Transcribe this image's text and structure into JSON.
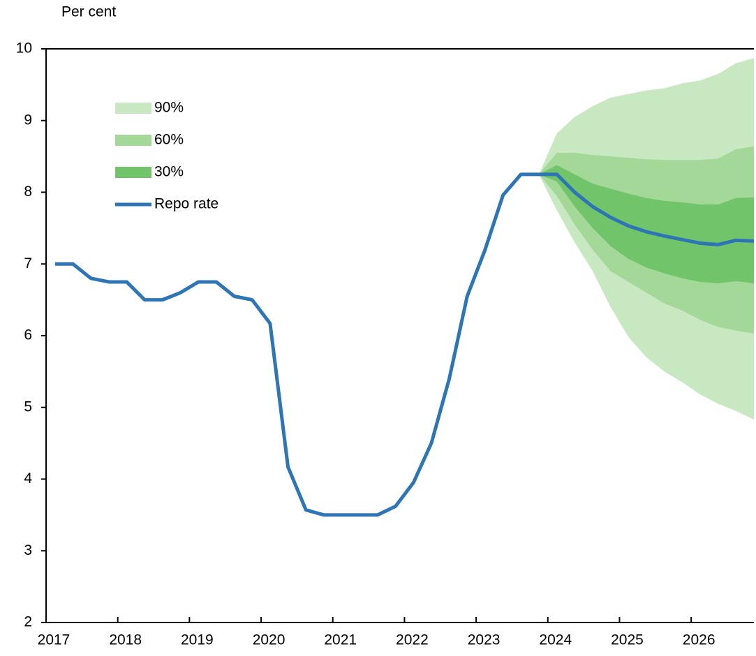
{
  "chart_data": {
    "type": "fan",
    "y_label": "Per cent",
    "x": [
      2017.125,
      2017.375,
      2017.625,
      2017.875,
      2018.125,
      2018.375,
      2018.625,
      2018.875,
      2019.125,
      2019.375,
      2019.625,
      2019.875,
      2020.125,
      2020.375,
      2020.625,
      2020.875,
      2021.125,
      2021.375,
      2021.625,
      2021.875,
      2022.125,
      2022.375,
      2022.625,
      2022.875,
      2023.125,
      2023.375,
      2023.625,
      2023.875,
      2024.125,
      2024.375,
      2024.625,
      2024.875,
      2025.125,
      2025.375,
      2025.625,
      2025.875,
      2026.125,
      2026.375,
      2026.625,
      2026.875
    ],
    "bands": [
      {
        "name": "90%",
        "color": "#c8e8c1",
        "upper": [
          null,
          null,
          null,
          null,
          null,
          null,
          null,
          null,
          null,
          null,
          null,
          null,
          null,
          null,
          null,
          null,
          null,
          null,
          null,
          null,
          null,
          null,
          null,
          null,
          null,
          null,
          null,
          8.25,
          8.82,
          9.05,
          9.2,
          9.32,
          9.37,
          9.42,
          9.45,
          9.52,
          9.56,
          9.65,
          9.8,
          9.87
        ],
        "lower": [
          null,
          null,
          null,
          null,
          null,
          null,
          null,
          null,
          null,
          null,
          null,
          null,
          null,
          null,
          null,
          null,
          null,
          null,
          null,
          null,
          null,
          null,
          null,
          null,
          null,
          null,
          null,
          8.25,
          7.75,
          7.3,
          6.9,
          6.4,
          5.98,
          5.7,
          5.5,
          5.35,
          5.18,
          5.05,
          4.95,
          4.83
        ]
      },
      {
        "name": "60%",
        "color": "#a3d899",
        "upper": [
          null,
          null,
          null,
          null,
          null,
          null,
          null,
          null,
          null,
          null,
          null,
          null,
          null,
          null,
          null,
          null,
          null,
          null,
          null,
          null,
          null,
          null,
          null,
          null,
          null,
          null,
          null,
          8.25,
          8.55,
          8.55,
          8.52,
          8.5,
          8.48,
          8.46,
          8.45,
          8.45,
          8.45,
          8.47,
          8.6,
          8.64
        ],
        "lower": [
          null,
          null,
          null,
          null,
          null,
          null,
          null,
          null,
          null,
          null,
          null,
          null,
          null,
          null,
          null,
          null,
          null,
          null,
          null,
          null,
          null,
          null,
          null,
          null,
          null,
          null,
          null,
          8.25,
          7.95,
          7.55,
          7.2,
          6.9,
          6.75,
          6.6,
          6.45,
          6.35,
          6.22,
          6.12,
          6.07,
          6.03
        ]
      },
      {
        "name": "30%",
        "color": "#72c46b",
        "upper": [
          null,
          null,
          null,
          null,
          null,
          null,
          null,
          null,
          null,
          null,
          null,
          null,
          null,
          null,
          null,
          null,
          null,
          null,
          null,
          null,
          null,
          null,
          null,
          null,
          null,
          null,
          null,
          8.25,
          8.38,
          8.25,
          8.12,
          8.05,
          7.98,
          7.92,
          7.88,
          7.86,
          7.83,
          7.83,
          7.92,
          7.93
        ],
        "lower": [
          null,
          null,
          null,
          null,
          null,
          null,
          null,
          null,
          null,
          null,
          null,
          null,
          null,
          null,
          null,
          null,
          null,
          null,
          null,
          null,
          null,
          null,
          null,
          null,
          null,
          null,
          null,
          8.25,
          8.15,
          7.8,
          7.5,
          7.25,
          7.07,
          6.95,
          6.87,
          6.8,
          6.75,
          6.73,
          6.76,
          6.73
        ]
      }
    ],
    "series": [
      {
        "name": "Repo rate",
        "color": "#2e75b6",
        "values": [
          7.0,
          7.0,
          6.8,
          6.75,
          6.75,
          6.5,
          6.5,
          6.6,
          6.75,
          6.75,
          6.55,
          6.5,
          6.17,
          4.17,
          3.57,
          3.5,
          3.5,
          3.5,
          3.5,
          3.62,
          3.95,
          4.5,
          5.4,
          6.55,
          7.2,
          7.96,
          8.25,
          8.25,
          8.25,
          8.0,
          7.8,
          7.65,
          7.53,
          7.45,
          7.39,
          7.34,
          7.29,
          7.27,
          7.33,
          7.32
        ]
      }
    ],
    "xlim": [
      2017,
      2026.875
    ],
    "xticks": [
      2017,
      2018,
      2019,
      2020,
      2021,
      2022,
      2023,
      2024,
      2025,
      2026
    ],
    "ylim": [
      2,
      10
    ],
    "yticks": [
      2,
      3,
      4,
      5,
      6,
      7,
      8,
      9,
      10
    ]
  }
}
